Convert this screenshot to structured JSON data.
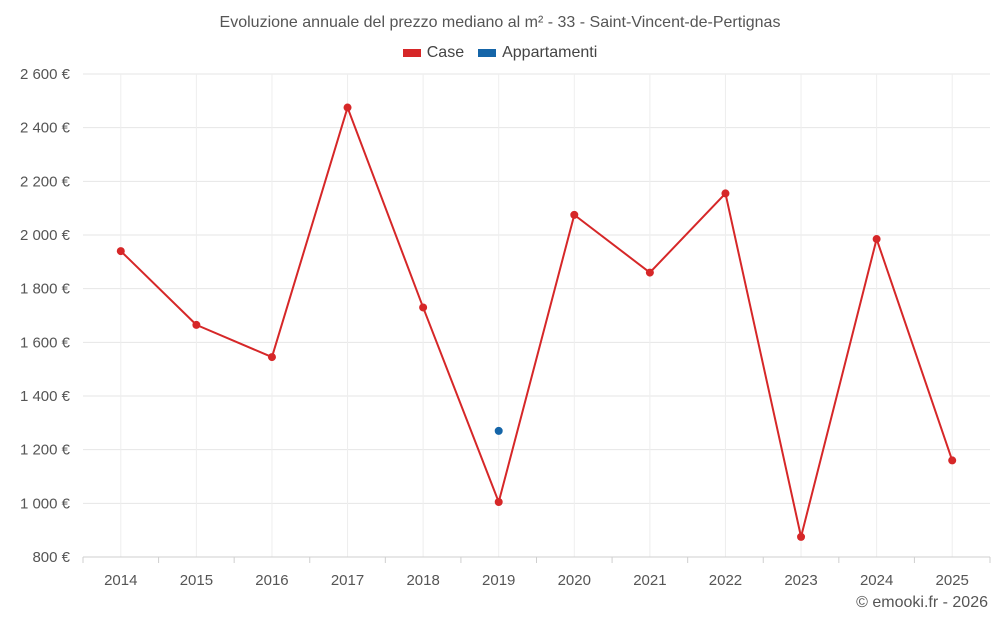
{
  "chart_data": {
    "type": "line",
    "title": "Evoluzione annuale del prezzo mediano al m² - 33 - Saint-Vincent-de-Pertignas",
    "xlabel": "",
    "ylabel": "",
    "categories": [
      "2014",
      "2015",
      "2016",
      "2017",
      "2018",
      "2019",
      "2020",
      "2021",
      "2022",
      "2023",
      "2024",
      "2025"
    ],
    "ylim": [
      800,
      2600
    ],
    "yticks": [
      800,
      1000,
      1200,
      1400,
      1600,
      1800,
      2000,
      2200,
      2400,
      2600
    ],
    "ytick_labels": [
      "800 €",
      "1 000 €",
      "1 200 €",
      "1 400 €",
      "1 600 €",
      "1 800 €",
      "2 000 €",
      "2 200 €",
      "2 400 €",
      "2 600 €"
    ],
    "grid": true,
    "series": [
      {
        "name": "Case",
        "color": "#d62728",
        "values": [
          1940,
          1665,
          1545,
          2475,
          1730,
          1005,
          2075,
          1860,
          2155,
          875,
          1985,
          1160
        ]
      },
      {
        "name": "Appartamenti",
        "color": "#1565a8",
        "values": [
          null,
          null,
          null,
          null,
          null,
          1270,
          null,
          null,
          null,
          null,
          null,
          null
        ]
      }
    ]
  },
  "footer": {
    "copyright": "© emooki.fr - 2026"
  }
}
